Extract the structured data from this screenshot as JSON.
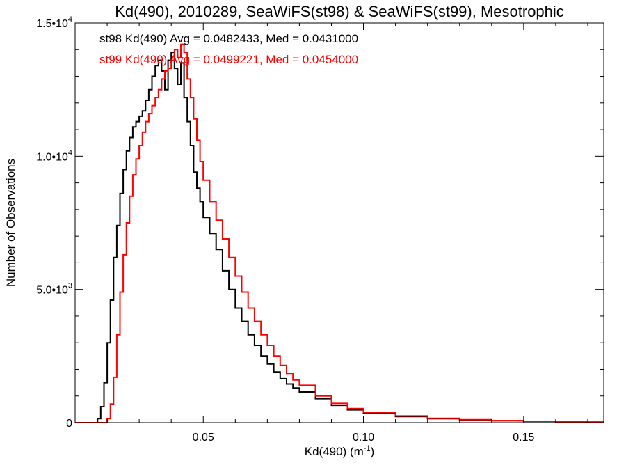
{
  "chart_data": {
    "type": "line",
    "title": "Kd(490), 2010289, SeaWiFS(st98) & SeaWiFS(st99), Mesotrophic",
    "xlabel": "Kd(490) (m",
    "xlabel_sup": "-1",
    "xlabel_end": ")",
    "ylabel": "Number of Observations",
    "xlim": [
      0.01,
      0.175
    ],
    "ylim": [
      0,
      15000
    ],
    "x_ticks": [
      {
        "value": 0.05,
        "label": "0.05"
      },
      {
        "value": 0.1,
        "label": "0.10"
      },
      {
        "value": 0.15,
        "label": "0.15"
      }
    ],
    "y_ticks": [
      {
        "value": 0,
        "label": "0",
        "sup": ""
      },
      {
        "value": 5000,
        "label": "5.0•10",
        "sup": "3"
      },
      {
        "value": 10000,
        "label": "1.0•10",
        "sup": "4"
      },
      {
        "value": 15000,
        "label": "1.5•10",
        "sup": "4"
      }
    ],
    "grid": false,
    "legend_position": "top-left",
    "series": [
      {
        "name": "st98 Kd(490) Avg = 0.0482433, Med = 0.0431000",
        "color": "#000000",
        "x": [
          0.01,
          0.015,
          0.017,
          0.018,
          0.019,
          0.02,
          0.021,
          0.022,
          0.023,
          0.024,
          0.025,
          0.026,
          0.027,
          0.028,
          0.029,
          0.03,
          0.031,
          0.032,
          0.033,
          0.034,
          0.035,
          0.036,
          0.037,
          0.038,
          0.039,
          0.04,
          0.041,
          0.042,
          0.043,
          0.044,
          0.045,
          0.046,
          0.047,
          0.048,
          0.049,
          0.05,
          0.052,
          0.054,
          0.056,
          0.058,
          0.06,
          0.062,
          0.064,
          0.066,
          0.068,
          0.07,
          0.072,
          0.074,
          0.076,
          0.078,
          0.08,
          0.085,
          0.09,
          0.095,
          0.1,
          0.11,
          0.12,
          0.13,
          0.14,
          0.15,
          0.16,
          0.17,
          0.175
        ],
        "y": [
          0,
          0,
          150,
          600,
          1500,
          3000,
          4600,
          6200,
          7400,
          8600,
          9500,
          10200,
          10700,
          11100,
          11300,
          11500,
          11700,
          12100,
          12500,
          13000,
          13400,
          13600,
          13200,
          12500,
          13600,
          13900,
          13300,
          12700,
          13500,
          12200,
          11300,
          10400,
          9400,
          8800,
          8300,
          7700,
          7100,
          6500,
          5700,
          5000,
          4300,
          3800,
          3300,
          2900,
          2500,
          2200,
          1900,
          1650,
          1450,
          1300,
          1150,
          900,
          650,
          480,
          350,
          230,
          150,
          100,
          70,
          50,
          30,
          20,
          15
        ]
      },
      {
        "name": "st99 Kd(490) Avg = 0.0499221, Med = 0.0454000",
        "color": "#ff0000",
        "x": [
          0.01,
          0.015,
          0.019,
          0.02,
          0.021,
          0.022,
          0.023,
          0.024,
          0.025,
          0.026,
          0.027,
          0.028,
          0.029,
          0.03,
          0.031,
          0.032,
          0.033,
          0.034,
          0.035,
          0.036,
          0.037,
          0.038,
          0.039,
          0.04,
          0.041,
          0.042,
          0.043,
          0.044,
          0.045,
          0.046,
          0.047,
          0.048,
          0.049,
          0.05,
          0.052,
          0.054,
          0.056,
          0.058,
          0.06,
          0.062,
          0.064,
          0.066,
          0.068,
          0.07,
          0.072,
          0.074,
          0.076,
          0.078,
          0.08,
          0.085,
          0.09,
          0.095,
          0.1,
          0.11,
          0.12,
          0.13,
          0.14,
          0.15,
          0.16,
          0.17,
          0.175
        ],
        "y": [
          0,
          0,
          0,
          150,
          700,
          1700,
          3300,
          4900,
          6300,
          7500,
          8500,
          9300,
          9900,
          10400,
          10900,
          11300,
          11600,
          11900,
          12200,
          12500,
          12900,
          13200,
          13300,
          13600,
          14000,
          13700,
          14200,
          13900,
          12900,
          12200,
          11400,
          10600,
          9800,
          9100,
          8300,
          7600,
          6900,
          6200,
          5500,
          4900,
          4300,
          3800,
          3300,
          2900,
          2500,
          2150,
          1850,
          1600,
          1400,
          1000,
          720,
          530,
          390,
          250,
          165,
          110,
          75,
          52,
          34,
          22,
          16
        ]
      }
    ]
  }
}
